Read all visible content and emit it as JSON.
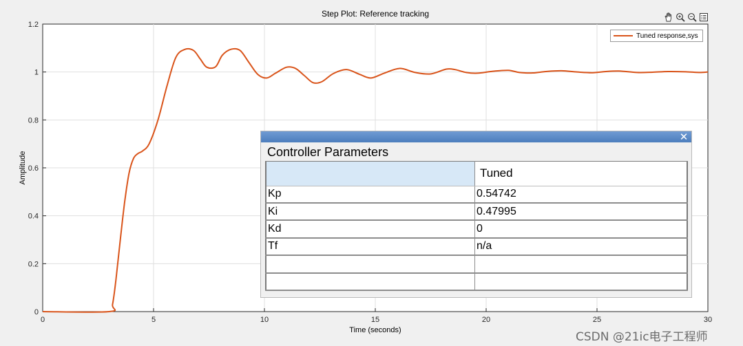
{
  "chart_data": {
    "type": "line",
    "title": "Step Plot: Reference tracking",
    "xlabel": "Time (seconds)",
    "ylabel": "Amplitude",
    "xlim": [
      0,
      30
    ],
    "ylim": [
      0,
      1.2
    ],
    "xticks": [
      0,
      5,
      10,
      15,
      20,
      25,
      30
    ],
    "yticks": [
      0,
      0.2,
      0.4,
      0.6,
      0.8,
      1,
      1.2
    ],
    "xtick_labels": [
      "0",
      "5",
      "10",
      "15",
      "20",
      "25",
      "30"
    ],
    "ytick_labels": [
      "0",
      "0.2",
      "0.4",
      "0.6",
      "0.8",
      "1",
      "1.2"
    ],
    "grid": true,
    "legend": "top-right",
    "series": [
      {
        "name": "Tuned response,sys",
        "color": "#d95319",
        "x": [
          0,
          3.0,
          3.15,
          3.3,
          3.5,
          3.7,
          3.9,
          4.1,
          4.3,
          4.5,
          4.8,
          5.2,
          5.6,
          6.0,
          6.4,
          6.8,
          7.1,
          7.4,
          7.8,
          8.1,
          8.5,
          8.9,
          9.3,
          9.7,
          10.1,
          10.5,
          11.0,
          11.4,
          11.8,
          12.2,
          12.6,
          13.1,
          13.7,
          14.3,
          14.8,
          15.4,
          16.1,
          16.8,
          17.5,
          18.2,
          18.6,
          19.1,
          19.6,
          20.3,
          21.0,
          21.5,
          22.1,
          22.7,
          23.4,
          24.1,
          24.8,
          25.4,
          26.0,
          26.8,
          27.5,
          28.2,
          29.0,
          29.6,
          30.0
        ],
        "y": [
          0,
          0,
          0.03,
          0.13,
          0.3,
          0.46,
          0.58,
          0.64,
          0.66,
          0.67,
          0.7,
          0.8,
          0.94,
          1.06,
          1.094,
          1.09,
          1.055,
          1.02,
          1.022,
          1.07,
          1.095,
          1.09,
          1.04,
          0.99,
          0.975,
          0.995,
          1.02,
          1.015,
          0.985,
          0.955,
          0.96,
          0.993,
          1.01,
          0.99,
          0.975,
          0.995,
          1.015,
          0.998,
          0.992,
          1.012,
          1.01,
          0.998,
          0.995,
          1.003,
          1.007,
          0.998,
          0.996,
          1.002,
          1.005,
          1.0,
          0.997,
          1.002,
          1.004,
          0.998,
          0.999,
          1.002,
          1.001,
          0.998,
          1.0
        ]
      }
    ]
  },
  "toolbar": {
    "icons": [
      "pan-icon",
      "zoom-in-icon",
      "zoom-out-icon",
      "data-browser-icon"
    ]
  },
  "panel": {
    "heading": "Controller Parameters",
    "close_glyph": "✕",
    "column_header": "Tuned",
    "rows": [
      {
        "name": "Kp",
        "value": "0.54742"
      },
      {
        "name": "Ki",
        "value": "0.47995"
      },
      {
        "name": "Kd",
        "value": "0"
      },
      {
        "name": "Tf",
        "value": "n/a"
      },
      {
        "name": "",
        "value": ""
      },
      {
        "name": "",
        "value": ""
      }
    ]
  },
  "watermark": "CSDN @21ic电子工程师"
}
